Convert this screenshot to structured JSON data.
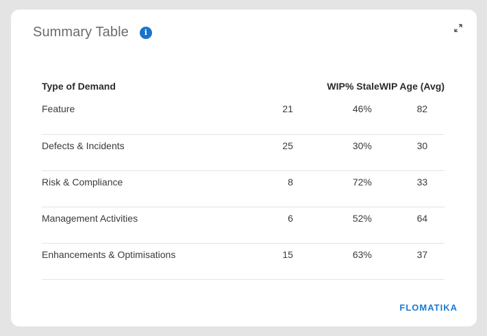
{
  "card": {
    "title": "Summary Table",
    "info_icon": "info-icon",
    "expand_icon": "expand-icon"
  },
  "table": {
    "headers": {
      "type": "Type of Demand",
      "wip": "WIP",
      "stale": "% Stale",
      "age": "WIP Age (Avg)"
    },
    "rows": [
      {
        "type": "Feature",
        "wip": "21",
        "stale": "46%",
        "age": "82"
      },
      {
        "type": "Defects & Incidents",
        "wip": "25",
        "stale": "30%",
        "age": "30"
      },
      {
        "type": "Risk & Compliance",
        "wip": "8",
        "stale": "72%",
        "age": "33"
      },
      {
        "type": "Management Activities",
        "wip": "6",
        "stale": "52%",
        "age": "64"
      },
      {
        "type": "Enhancements & Optimisations",
        "wip": "15",
        "stale": "63%",
        "age": "37"
      }
    ]
  },
  "logo": {
    "text": "FLOMATIKA",
    "color": "#1b7ad0"
  },
  "colors": {
    "accent": "#1a73c9",
    "background": "#e4e4e4",
    "card": "#ffffff"
  }
}
